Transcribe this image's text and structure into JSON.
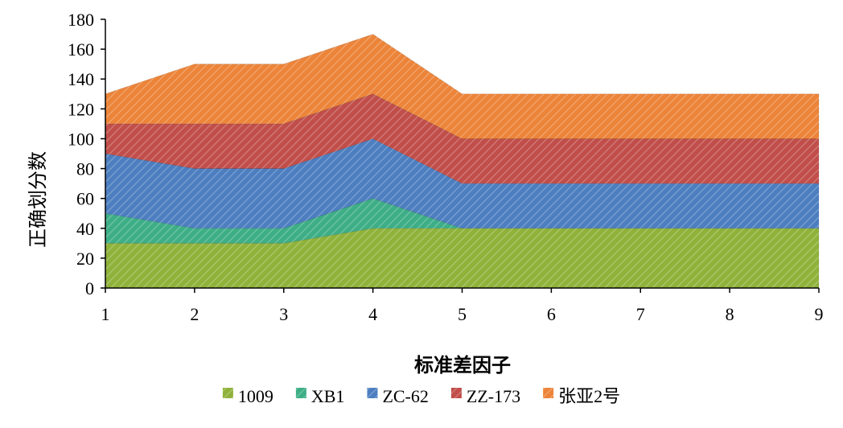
{
  "chart_data": {
    "type": "area",
    "stacked": true,
    "xlabel": "标准差因子",
    "ylabel": "正确划分数",
    "x": [
      1,
      2,
      3,
      4,
      5,
      6,
      7,
      8,
      9
    ],
    "ylim": [
      0,
      180
    ],
    "yticks": [
      0,
      20,
      40,
      60,
      80,
      100,
      120,
      140,
      160,
      180
    ],
    "grid": false,
    "legend": "bottom",
    "series": [
      {
        "name": "1009",
        "color": "#8fb23a",
        "values": [
          30,
          30,
          30,
          40,
          40,
          40,
          40,
          40,
          40
        ]
      },
      {
        "name": "XB1",
        "color": "#3dae86",
        "values": [
          20,
          10,
          10,
          20,
          0,
          0,
          0,
          0,
          0
        ]
      },
      {
        "name": "ZC-62",
        "color": "#4c7ec0",
        "values": [
          40,
          40,
          40,
          40,
          30,
          30,
          30,
          30,
          30
        ]
      },
      {
        "name": "ZZ-173",
        "color": "#c14e4a",
        "values": [
          20,
          30,
          30,
          30,
          30,
          30,
          30,
          30,
          30
        ]
      },
      {
        "name": "张亚2号",
        "color": "#ec8439",
        "values": [
          20,
          40,
          40,
          40,
          30,
          30,
          30,
          30,
          30
        ]
      }
    ]
  }
}
